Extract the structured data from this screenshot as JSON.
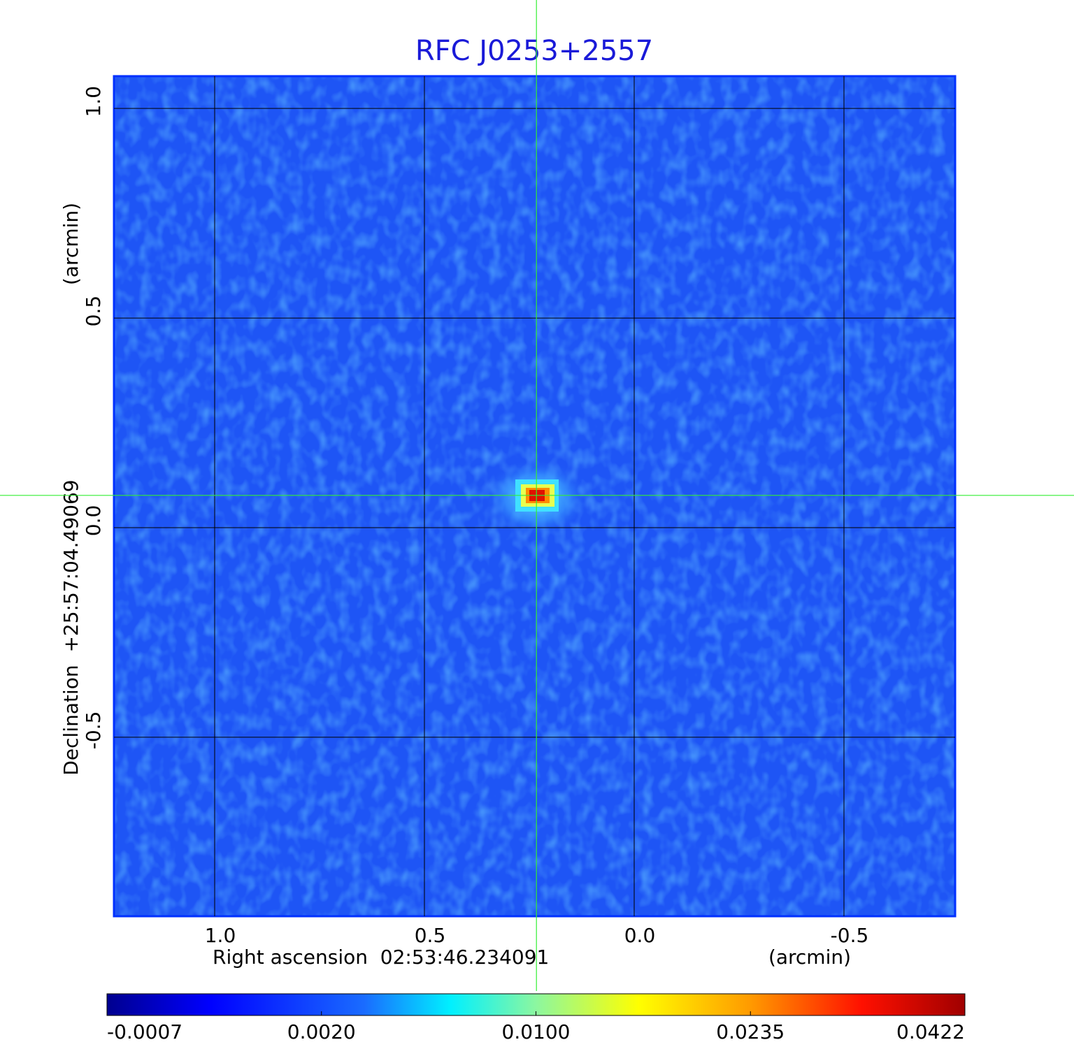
{
  "chart_data": {
    "type": "image",
    "title": "RFC J0253+2557",
    "x_label": "Right ascension  02:53:46.234091",
    "x_unit": "(arcmin)",
    "y_label": "Declination  +25:57:04.49069",
    "y_unit": "(arcmin)",
    "xlim": [
      1.24,
      -0.765
    ],
    "ylim": [
      -0.927,
      1.077
    ],
    "xticks": [
      {
        "value": 1.0,
        "label": "1.0"
      },
      {
        "value": 0.5,
        "label": "0.5"
      },
      {
        "value": 0.0,
        "label": "0.0"
      },
      {
        "value": -0.5,
        "label": "-0.5"
      }
    ],
    "yticks": [
      {
        "value": 1.0,
        "label": "1.0"
      },
      {
        "value": 0.5,
        "label": "0.5"
      },
      {
        "value": 0.0,
        "label": "0.0"
      },
      {
        "value": -0.5,
        "label": "-0.5"
      }
    ],
    "grid": true,
    "crosshair": {
      "x": 0.233,
      "y": 0.077
    },
    "colorbar": {
      "ticks": [
        {
          "value": -0.0007,
          "label": "-0.0007"
        },
        {
          "value": 0.002,
          "label": "0.0020"
        },
        {
          "value": 0.01,
          "label": "0.0100"
        },
        {
          "value": 0.0235,
          "label": "0.0235"
        },
        {
          "value": 0.0422,
          "label": "0.0422"
        }
      ]
    }
  }
}
